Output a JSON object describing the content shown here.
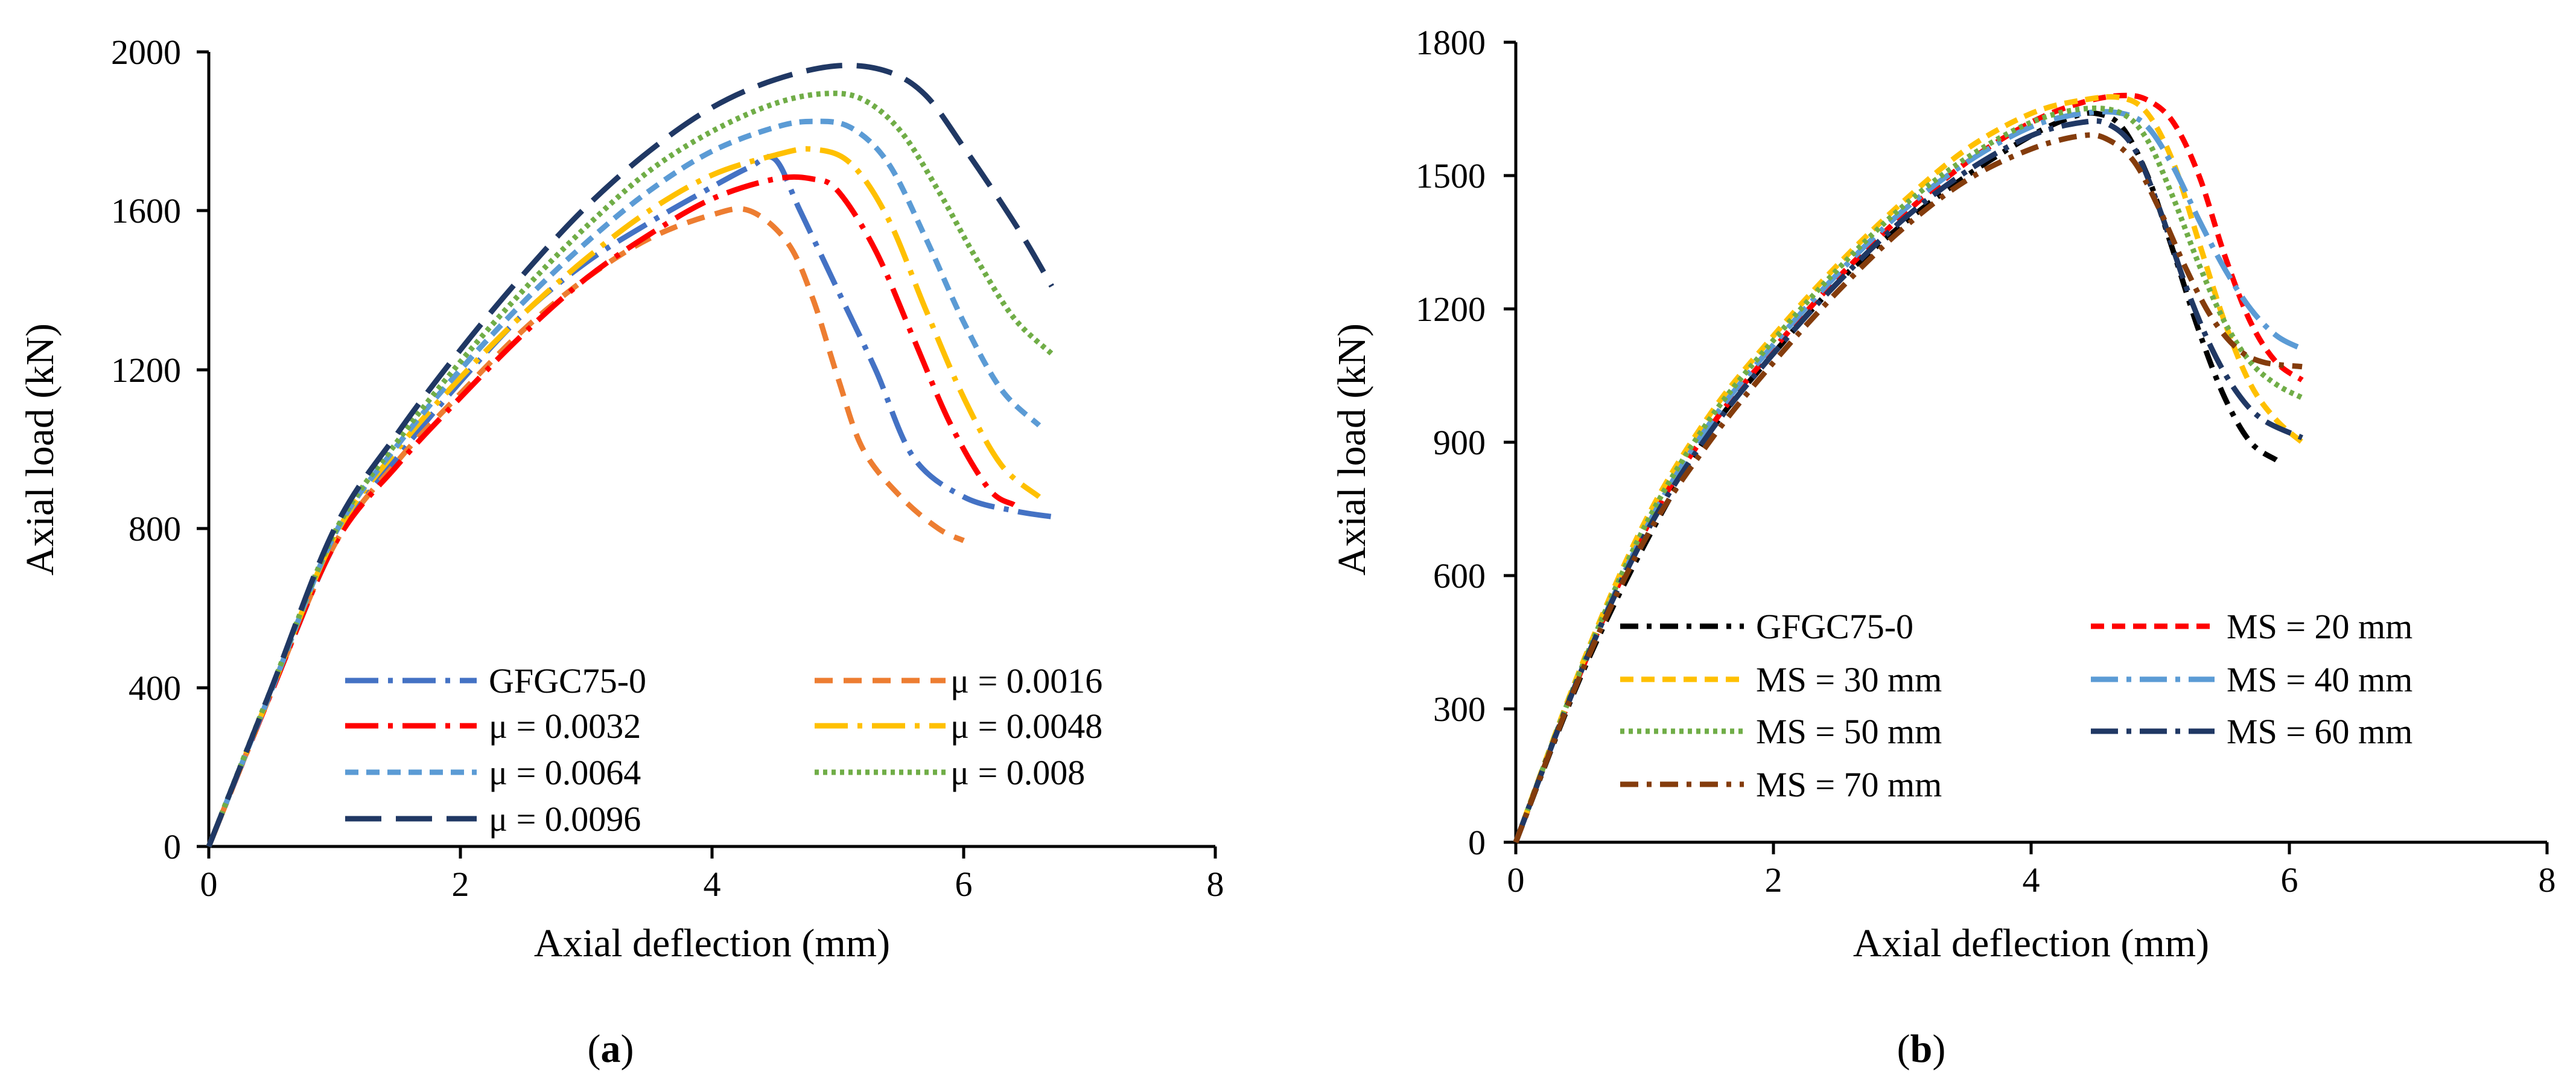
{
  "chart_data": [
    {
      "type": "line",
      "panel_label": "a",
      "xlabel": "Axial deflection (mm)",
      "ylabel": "Axial load (kN)",
      "xlim": [
        0,
        8
      ],
      "ylim": [
        0,
        2000
      ],
      "xticks": [
        "0",
        "2",
        "4",
        "6",
        "8"
      ],
      "yticks": [
        "0",
        "400",
        "800",
        "1200",
        "1600",
        "2000"
      ],
      "grid": false,
      "series": [
        {
          "name": "GFGC75-0",
          "color": "#4472c4",
          "dash": "55 16 8 16",
          "x": [
            0,
            0.5,
            1.0,
            1.5,
            2.0,
            2.5,
            3.0,
            3.5,
            4.0,
            4.3,
            4.5,
            4.7,
            5.0,
            5.3,
            5.6,
            6.0,
            6.4,
            6.7
          ],
          "y": [
            0,
            390,
            760,
            980,
            1170,
            1340,
            1470,
            1570,
            1660,
            1710,
            1730,
            1600,
            1400,
            1200,
            980,
            880,
            845,
            830
          ]
        },
        {
          "name": "μ = 0.0016",
          "color": "#ed7d31",
          "dash": "30 18",
          "x": [
            0,
            0.5,
            1.0,
            1.5,
            2.0,
            2.5,
            3.0,
            3.5,
            4.0,
            4.3,
            4.6,
            4.8,
            5.0,
            5.2,
            5.5,
            5.8,
            6.0
          ],
          "y": [
            0,
            390,
            760,
            970,
            1140,
            1300,
            1430,
            1530,
            1590,
            1600,
            1520,
            1380,
            1180,
            1000,
            880,
            800,
            770
          ]
        },
        {
          "name": "μ = 0.0032",
          "color": "#ff0000",
          "dash": "55 16 8 16",
          "x": [
            0,
            0.5,
            1.0,
            1.5,
            2.0,
            2.5,
            3.0,
            3.5,
            4.0,
            4.5,
            4.8,
            5.0,
            5.3,
            5.6,
            5.9,
            6.2,
            6.4
          ],
          "y": [
            0,
            390,
            760,
            960,
            1130,
            1290,
            1430,
            1540,
            1630,
            1680,
            1680,
            1650,
            1500,
            1280,
            1060,
            900,
            860
          ]
        },
        {
          "name": "μ = 0.0048",
          "color": "#ffc000",
          "dash": "55 16 8 16",
          "x": [
            0,
            0.5,
            1.0,
            1.5,
            2.0,
            2.5,
            3.0,
            3.5,
            4.0,
            4.5,
            4.8,
            5.1,
            5.4,
            5.7,
            6.0,
            6.3,
            6.6
          ],
          "y": [
            0,
            395,
            780,
            1000,
            1180,
            1340,
            1480,
            1600,
            1690,
            1740,
            1755,
            1720,
            1580,
            1350,
            1130,
            960,
            880
          ]
        },
        {
          "name": "μ = 0.0064",
          "color": "#5b9bd5",
          "dash": "22 13",
          "x": [
            0,
            0.5,
            1.0,
            1.5,
            2.0,
            2.5,
            3.0,
            3.5,
            4.0,
            4.5,
            4.8,
            5.1,
            5.4,
            5.7,
            6.0,
            6.3,
            6.6
          ],
          "y": [
            0,
            395,
            785,
            1010,
            1200,
            1370,
            1520,
            1650,
            1750,
            1810,
            1825,
            1810,
            1720,
            1530,
            1320,
            1150,
            1060
          ]
        },
        {
          "name": "μ = 0.008",
          "color": "#70ad47",
          "dash": "7 7",
          "x": [
            0,
            0.5,
            1.0,
            1.5,
            2.0,
            2.5,
            3.0,
            3.5,
            4.0,
            4.5,
            4.9,
            5.2,
            5.5,
            5.8,
            6.1,
            6.4,
            6.7
          ],
          "y": [
            0,
            400,
            790,
            1020,
            1220,
            1400,
            1560,
            1700,
            1800,
            1870,
            1895,
            1880,
            1800,
            1650,
            1480,
            1330,
            1240
          ]
        },
        {
          "name": "μ = 0.0096",
          "color": "#203864",
          "dash": "60 24",
          "x": [
            0,
            0.5,
            1.0,
            1.5,
            2.0,
            2.5,
            3.0,
            3.5,
            4.0,
            4.5,
            5.0,
            5.4,
            5.7,
            6.0,
            6.3,
            6.5,
            6.7
          ],
          "y": [
            0,
            400,
            800,
            1040,
            1250,
            1440,
            1610,
            1750,
            1860,
            1930,
            1965,
            1950,
            1890,
            1760,
            1620,
            1520,
            1410
          ]
        }
      ]
    },
    {
      "type": "line",
      "panel_label": "b",
      "xlabel": "Axial deflection (mm)",
      "ylabel": "Axial load (kN)",
      "xlim": [
        0,
        8
      ],
      "ylim": [
        0,
        1800
      ],
      "xticks": [
        "0",
        "2",
        "4",
        "6",
        "8"
      ],
      "yticks": [
        "0",
        "300",
        "600",
        "900",
        "1200",
        "1500",
        "1800"
      ],
      "grid": false,
      "series": [
        {
          "name": "GFGC75-0",
          "color": "#000000",
          "dash": "30 14 8 14",
          "x": [
            0,
            0.5,
            1.0,
            1.5,
            2.0,
            2.5,
            3.0,
            3.5,
            4.0,
            4.3,
            4.5,
            4.7,
            4.9,
            5.1,
            5.3,
            5.5,
            5.7,
            5.9
          ],
          "y": [
            0,
            370,
            670,
            920,
            1100,
            1260,
            1390,
            1500,
            1590,
            1630,
            1640,
            1610,
            1500,
            1330,
            1150,
            1000,
            900,
            860
          ]
        },
        {
          "name": "MS = 20 mm",
          "color": "#ff0000",
          "dash": "22 13",
          "x": [
            0,
            0.5,
            1.0,
            1.5,
            2.0,
            2.5,
            3.0,
            3.5,
            4.0,
            4.4,
            4.7,
            4.9,
            5.1,
            5.3,
            5.5,
            5.7,
            5.9,
            6.1
          ],
          "y": [
            0,
            380,
            700,
            930,
            1110,
            1270,
            1410,
            1530,
            1620,
            1665,
            1680,
            1670,
            1620,
            1500,
            1320,
            1170,
            1080,
            1040
          ]
        },
        {
          "name": "MS = 30 mm",
          "color": "#ffc000",
          "dash": "22 13",
          "x": [
            0,
            0.5,
            1.0,
            1.5,
            2.0,
            2.5,
            3.0,
            3.5,
            4.0,
            4.4,
            4.7,
            4.9,
            5.1,
            5.3,
            5.5,
            5.7,
            5.9,
            6.1
          ],
          "y": [
            0,
            390,
            720,
            960,
            1140,
            1300,
            1440,
            1560,
            1640,
            1670,
            1675,
            1640,
            1530,
            1350,
            1170,
            1030,
            950,
            900
          ]
        },
        {
          "name": "MS = 40 mm",
          "color": "#5b9bd5",
          "dash": "45 14 8 14",
          "x": [
            0,
            0.5,
            1.0,
            1.5,
            2.0,
            2.5,
            3.0,
            3.5,
            4.0,
            4.4,
            4.7,
            4.9,
            5.1,
            5.3,
            5.5,
            5.7,
            5.9,
            6.1
          ],
          "y": [
            0,
            380,
            700,
            940,
            1120,
            1280,
            1420,
            1530,
            1610,
            1640,
            1640,
            1610,
            1520,
            1400,
            1290,
            1200,
            1140,
            1110
          ]
        },
        {
          "name": "MS = 50 mm",
          "color": "#70ad47",
          "dash": "7 7",
          "x": [
            0,
            0.5,
            1.0,
            1.5,
            2.0,
            2.5,
            3.0,
            3.5,
            4.0,
            4.4,
            4.7,
            4.9,
            5.1,
            5.3,
            5.5,
            5.7,
            5.9,
            6.1
          ],
          "y": [
            0,
            385,
            710,
            950,
            1130,
            1290,
            1430,
            1540,
            1620,
            1650,
            1640,
            1580,
            1450,
            1300,
            1170,
            1080,
            1030,
            1000
          ]
        },
        {
          "name": "MS = 60 mm",
          "color": "#203864",
          "dash": "45 14 8 14",
          "x": [
            0,
            0.5,
            1.0,
            1.5,
            2.0,
            2.5,
            3.0,
            3.5,
            4.0,
            4.4,
            4.6,
            4.8,
            5.0,
            5.2,
            5.4,
            5.6,
            5.8,
            6.1
          ],
          "y": [
            0,
            380,
            690,
            920,
            1100,
            1260,
            1400,
            1510,
            1590,
            1620,
            1615,
            1560,
            1420,
            1250,
            1110,
            1010,
            950,
            910
          ]
        },
        {
          "name": "MS = 70 mm",
          "color": "#843c0c",
          "dash": "30 14 8 14",
          "x": [
            0,
            0.5,
            1.0,
            1.5,
            2.0,
            2.5,
            3.0,
            3.5,
            4.0,
            4.4,
            4.6,
            4.8,
            5.0,
            5.2,
            5.4,
            5.6,
            5.8,
            6.1
          ],
          "y": [
            0,
            375,
            680,
            900,
            1080,
            1240,
            1380,
            1490,
            1560,
            1590,
            1580,
            1530,
            1420,
            1290,
            1180,
            1110,
            1080,
            1070
          ]
        }
      ]
    }
  ]
}
